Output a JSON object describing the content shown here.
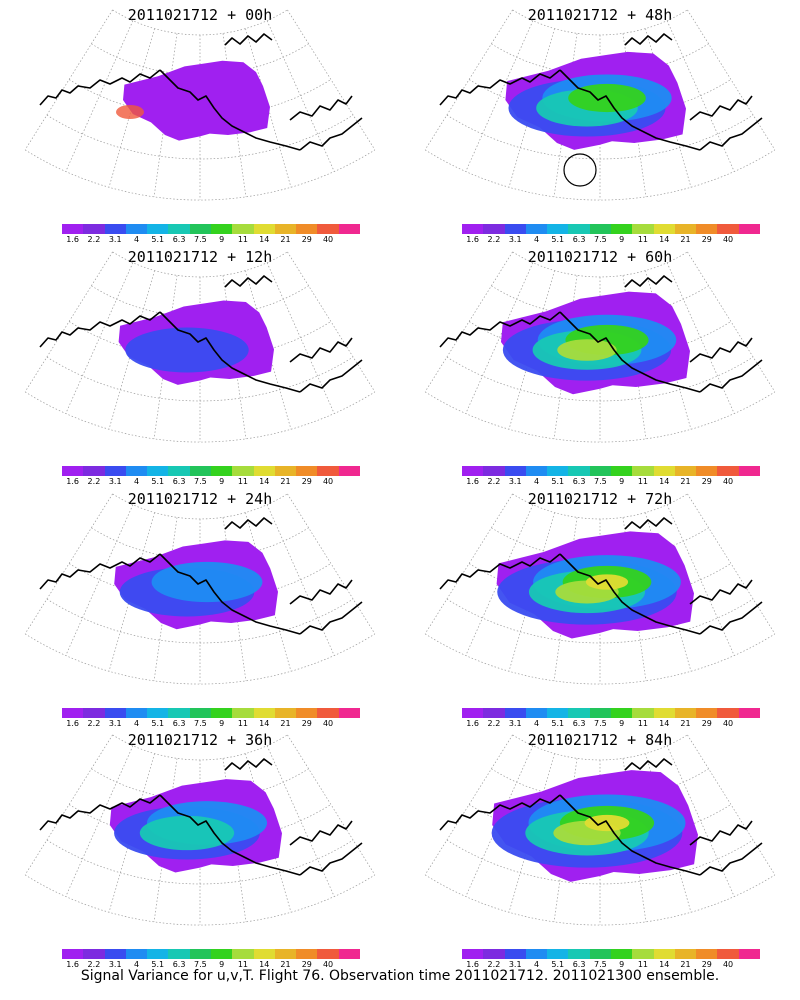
{
  "caption": "Signal Variance for u,v,T. Flight 76. Observation time 2011021712. 2011021300 ensemble.",
  "colorbar": {
    "labels": [
      "1.6",
      "2.2",
      "3.1",
      "4",
      "5.1",
      "6.3",
      "7.5",
      "9",
      "11",
      "14",
      "21",
      "29",
      "40"
    ],
    "colors": [
      "#a020f0",
      "#7d2be0",
      "#3a4cf0",
      "#1f8cf2",
      "#14b4e6",
      "#18c8b4",
      "#22c45a",
      "#34d21e",
      "#a6dc3c",
      "#e0dc32",
      "#e8b428",
      "#f08c28",
      "#f05a3c",
      "#f02890"
    ]
  },
  "panels": [
    {
      "title": "2011021712 + 00h",
      "intensity": 0
    },
    {
      "title": "2011021712 + 48h",
      "intensity": 4
    },
    {
      "title": "2011021712 + 12h",
      "intensity": 1
    },
    {
      "title": "2011021712 + 60h",
      "intensity": 5
    },
    {
      "title": "2011021712 + 24h",
      "intensity": 2
    },
    {
      "title": "2011021712 + 72h",
      "intensity": 6
    },
    {
      "title": "2011021712 + 36h",
      "intensity": 3
    },
    {
      "title": "2011021712 + 84h",
      "intensity": 7
    }
  ]
}
